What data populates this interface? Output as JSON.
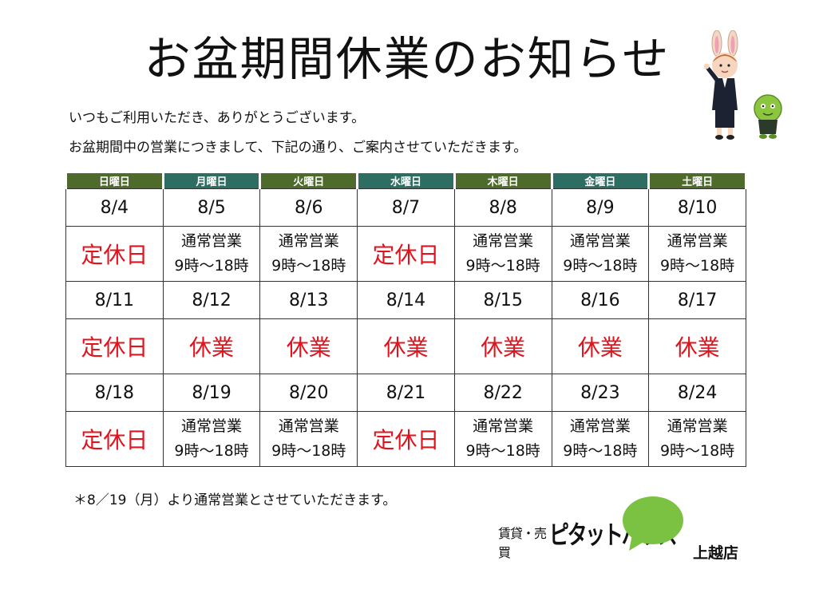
{
  "title": "お盆期間休業のお知らせ",
  "intro": {
    "line1": "いつもご利用いただき、ありがとうございます。",
    "line2": "お盆期間中の営業につきまして、下記の通り、ご案内させていただきます。"
  },
  "weekdays": [
    "日曜日",
    "月曜日",
    "火曜日",
    "水曜日",
    "木曜日",
    "金曜日",
    "土曜日"
  ],
  "weeks": [
    {
      "dates": [
        "8/4",
        "8/5",
        "8/6",
        "8/7",
        "8/8",
        "8/9",
        "8/10"
      ],
      "status": [
        {
          "type": "closed",
          "line1": "定休日",
          "line2": ""
        },
        {
          "type": "open",
          "line1": "通常営業",
          "line2": "9時～18時"
        },
        {
          "type": "open",
          "line1": "通常営業",
          "line2": "9時～18時"
        },
        {
          "type": "closed",
          "line1": "定休日",
          "line2": ""
        },
        {
          "type": "open",
          "line1": "通常営業",
          "line2": "9時～18時"
        },
        {
          "type": "open",
          "line1": "通常営業",
          "line2": "9時～18時"
        },
        {
          "type": "open",
          "line1": "通常営業",
          "line2": "9時～18時"
        }
      ]
    },
    {
      "dates": [
        "8/11",
        "8/12",
        "8/13",
        "8/14",
        "8/15",
        "8/16",
        "8/17"
      ],
      "status": [
        {
          "type": "closed",
          "line1": "定休日",
          "line2": ""
        },
        {
          "type": "closed",
          "line1": "休業",
          "line2": ""
        },
        {
          "type": "closed",
          "line1": "休業",
          "line2": ""
        },
        {
          "type": "closed",
          "line1": "休業",
          "line2": ""
        },
        {
          "type": "closed",
          "line1": "休業",
          "line2": ""
        },
        {
          "type": "closed",
          "line1": "休業",
          "line2": ""
        },
        {
          "type": "closed",
          "line1": "休業",
          "line2": ""
        }
      ]
    },
    {
      "dates": [
        "8/18",
        "8/19",
        "8/20",
        "8/21",
        "8/22",
        "8/23",
        "8/24"
      ],
      "status": [
        {
          "type": "closed",
          "line1": "定休日",
          "line2": ""
        },
        {
          "type": "open",
          "line1": "通常営業",
          "line2": "9時～18時"
        },
        {
          "type": "open",
          "line1": "通常営業",
          "line2": "9時～18時"
        },
        {
          "type": "closed",
          "line1": "定休日",
          "line2": ""
        },
        {
          "type": "open",
          "line1": "通常営業",
          "line2": "9時～18時"
        },
        {
          "type": "open",
          "line1": "通常営業",
          "line2": "9時～18時"
        },
        {
          "type": "open",
          "line1": "通常営業",
          "line2": "9時～18時"
        }
      ]
    }
  ],
  "note": "＊8／19（月）より通常営業とさせていただきます。",
  "brand": {
    "small": "賃貸・売買",
    "name": "ピタットハウス",
    "branch": "上越店",
    "color": "#7cc242"
  },
  "colors": {
    "header_green": "#4e6b2c",
    "header_teal": "#2e6e62",
    "closed_red": "#e0141e"
  }
}
